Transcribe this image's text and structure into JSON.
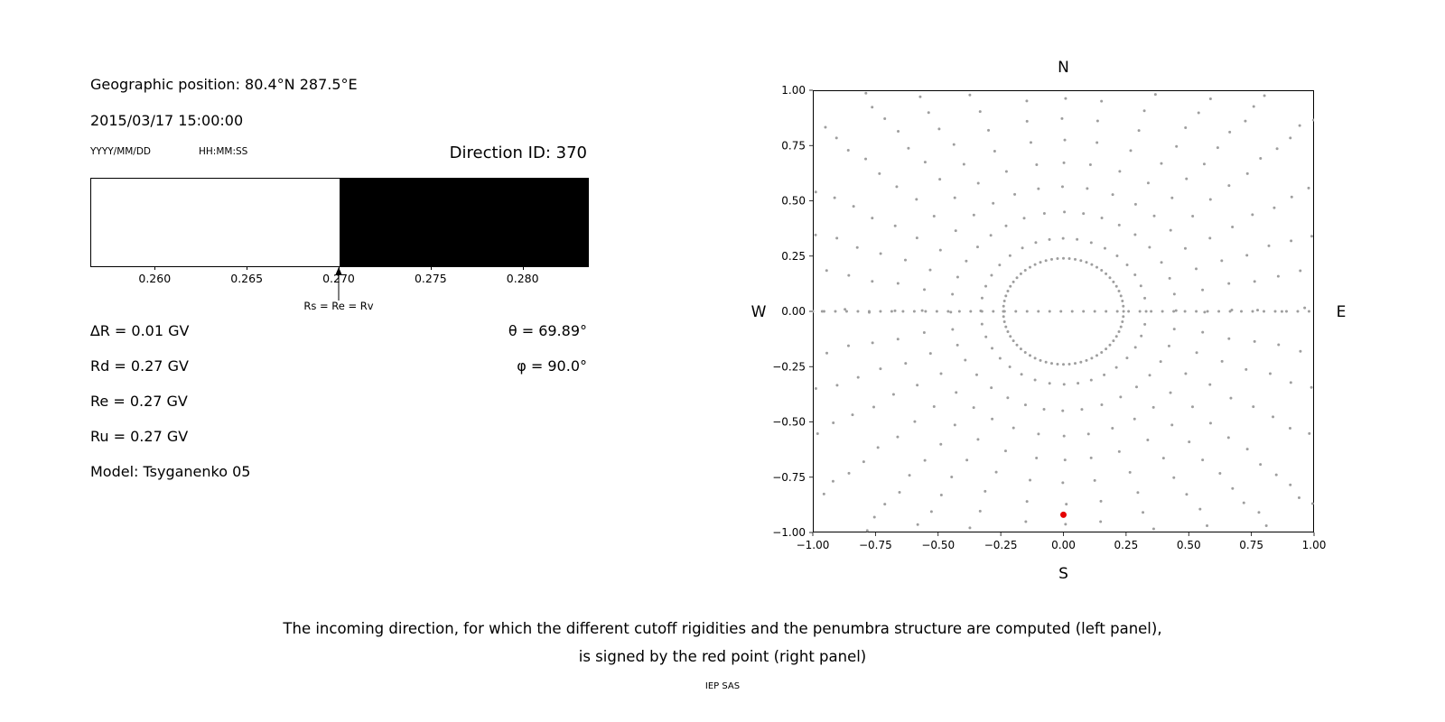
{
  "left_panel": {
    "geo_position": "Geographic position: 80.4°N 287.5°E",
    "datetime": "2015/03/17 15:00:00",
    "date_format_label": "YYYY/MM/DD",
    "time_format_label": "HH:MM:SS",
    "direction_id": "Direction ID: 370",
    "values": {
      "delta_r": "∆R = 0.01 GV",
      "rd": "Rd = 0.27 GV",
      "re": "Re = 0.27 GV",
      "ru": "Ru = 0.27 GV",
      "model": "Model: Tsyganenko 05",
      "theta": "θ = 69.89°",
      "phi": "φ = 90.0°"
    }
  },
  "caption": {
    "line1": "The incoming direction, for which the different cutoff rigidities and the penumbra structure are computed (left panel),",
    "line2": "is signed by the red point (right panel)",
    "credit": "IEP SAS"
  },
  "chart_data": [
    {
      "type": "bar",
      "description": "penumbra structure bar: white = allowed rigidities, black = forbidden, boundary at 0.270 GV",
      "x_range": [
        0.2565,
        0.2835
      ],
      "segments": [
        {
          "from": 0.2565,
          "to": 0.27,
          "color": "#ffffff"
        },
        {
          "from": 0.27,
          "to": 0.2835,
          "color": "#000000"
        }
      ],
      "xticks": [
        0.26,
        0.265,
        0.27,
        0.275,
        0.28
      ],
      "xtick_labels": [
        "0.260",
        "0.265",
        "0.270",
        "0.275",
        "0.280"
      ],
      "annotation": {
        "x": 0.27,
        "label": "Rs = Re = Rv"
      }
    },
    {
      "type": "scatter",
      "description": "sky map of viewing directions: gray dots in radial spokes plus inner ring; red dot marks the incoming direction near S",
      "xlim": [
        -1.0,
        1.0
      ],
      "ylim": [
        -1.0,
        1.0
      ],
      "xticks": [
        -1.0,
        -0.75,
        -0.5,
        -0.25,
        0.0,
        0.25,
        0.5,
        0.75,
        1.0
      ],
      "xtick_labels": [
        "−1.00",
        "−0.75",
        "−0.50",
        "−0.25",
        "0.00",
        "0.25",
        "0.50",
        "0.75",
        "1.00"
      ],
      "yticks": [
        -1.0,
        -0.75,
        -0.5,
        -0.25,
        0.0,
        0.25,
        0.5,
        0.75,
        1.0
      ],
      "ytick_labels": [
        "−1.00",
        "−0.75",
        "−0.50",
        "−0.25",
        "0.00",
        "0.25",
        "0.50",
        "0.75",
        "1.00"
      ],
      "compass": {
        "top": "N",
        "bottom": "S",
        "left": "W",
        "right": "E"
      },
      "dot_color": "#9e9e9e",
      "pattern": {
        "inner_ring": {
          "radius": 0.24,
          "count": 64
        },
        "spokes": {
          "count": 36,
          "angle_step_deg": 10,
          "r_start": 0.33,
          "r_end": 1.48,
          "dots_per_spoke": 17
        },
        "horizontal_row": {
          "y": 0.0,
          "x_start": -1.0,
          "x_end": 1.0,
          "step": 0.045
        }
      },
      "highlight_point": {
        "x": 0.0,
        "y": -0.92,
        "color": "#e50000"
      }
    }
  ]
}
